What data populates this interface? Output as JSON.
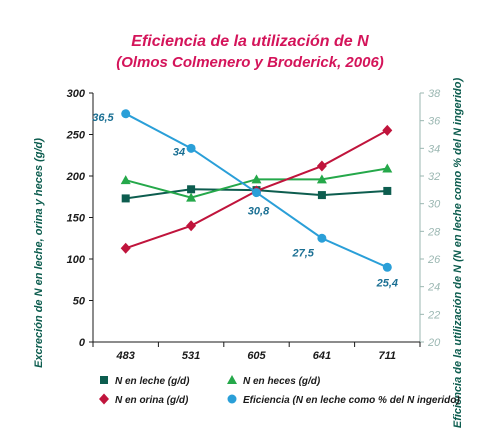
{
  "chart_data": {
    "type": "line",
    "title": "Eficiencia de la utilización de N",
    "subtitle": "(Olmos Colmenero y Broderick, 2006)",
    "categories": [
      "483",
      "531",
      "605",
      "641",
      "711"
    ],
    "ylabel_left": "Excreción de N en leche, orina y heces (g/d)",
    "ylabel_right": "Eficiencia de la utilización de N (N en leche como % del N ingerido)",
    "ylim_left": [
      0,
      300
    ],
    "yticks_left": [
      0,
      50,
      100,
      150,
      200,
      250,
      300
    ],
    "ylim_right": [
      20,
      38
    ],
    "yticks_right": [
      20,
      22,
      24,
      26,
      28,
      30,
      32,
      34,
      36,
      38
    ],
    "grid": false,
    "legend_position": "bottom",
    "series": [
      {
        "name": "N en leche (g/d)",
        "axis": "left",
        "color": "#0d5d4f",
        "marker": "square",
        "values": [
          173,
          184,
          183,
          177,
          182
        ]
      },
      {
        "name": "N en heces (g/d)",
        "axis": "left",
        "color": "#25a84a",
        "marker": "triangle",
        "values": [
          195,
          174,
          196,
          196,
          209
        ]
      },
      {
        "name": "N en orina (g/d)",
        "axis": "left",
        "color": "#c0143c",
        "marker": "diamond",
        "values": [
          113,
          140,
          182,
          212,
          255
        ]
      },
      {
        "name": "Eficiencia (N en leche como % del N ingerido)",
        "axis": "right",
        "color": "#2a9fd8",
        "marker": "circle",
        "values": [
          36.5,
          34.0,
          30.8,
          27.5,
          25.4
        ],
        "data_labels": [
          "36,5",
          "34",
          "30,8",
          "27,5",
          "25,4"
        ]
      }
    ]
  }
}
